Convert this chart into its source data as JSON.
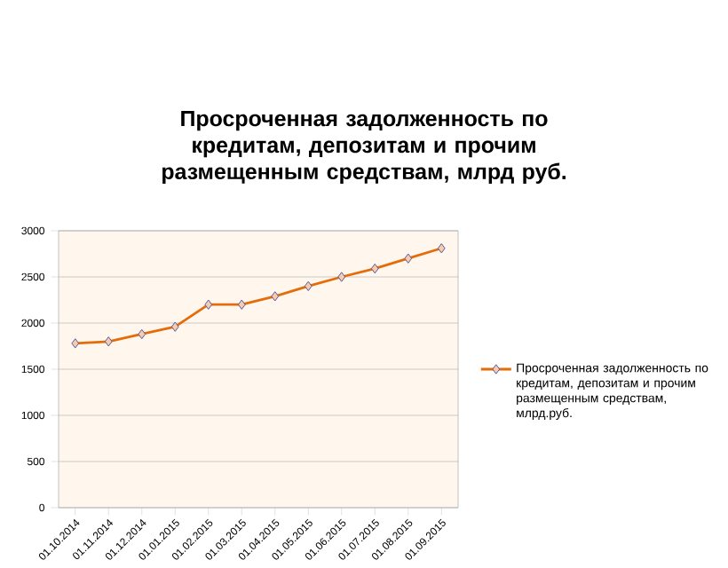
{
  "chart_data": {
    "type": "line",
    "title": "Просроченная задолженность по кредитам, депозитам и прочим размещенным средствам, млрд руб.",
    "categories": [
      "01.10.2014",
      "01.11.2014",
      "01.12.2014",
      "01.01.2015",
      "01.02.2015",
      "01.03.2015",
      "01.04.2015",
      "01.05.2015",
      "01.06.2015",
      "01.07.2015",
      "01.08.2015",
      "01.09.2015"
    ],
    "series": [
      {
        "name": "Просроченная задолженность по кредитам, депозитам и прочим размещенным средствам, млрд.руб.",
        "color": "#e46c0a",
        "values": [
          1780,
          1800,
          1880,
          1960,
          2200,
          2200,
          2290,
          2400,
          2500,
          2590,
          2700,
          2810
        ]
      }
    ],
    "ylim": [
      0,
      3000
    ],
    "yticks": [
      0,
      500,
      1000,
      1500,
      2000,
      2500,
      3000
    ],
    "grid": "y",
    "legend": "right",
    "marker": "diamond",
    "line_style": "solid"
  }
}
